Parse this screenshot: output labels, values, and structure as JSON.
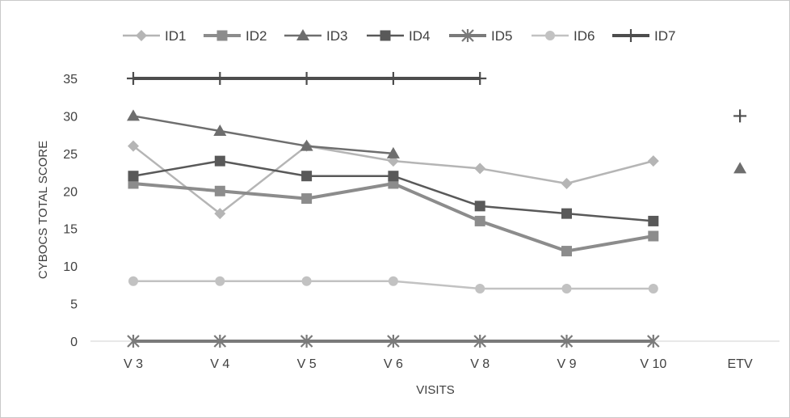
{
  "chart_data": {
    "type": "line",
    "title": "",
    "xlabel": "VISITS",
    "ylabel": "CYBOCS TOTAL SCORE",
    "categories": [
      "V 3",
      "V 4",
      "V 5",
      "V 6",
      "V 8",
      "V 9",
      "V 10",
      "ETV"
    ],
    "yticks": [
      "0",
      "5",
      "10",
      "15",
      "20",
      "25",
      "30",
      "35"
    ],
    "ylim": [
      0,
      35
    ],
    "grid": false,
    "legend_position": "top",
    "series": [
      {
        "name": "ID1",
        "marker": "diamond",
        "color": "#b5b5b5",
        "width": 2.5,
        "values": [
          26,
          17,
          26,
          24,
          23,
          21,
          24,
          null
        ]
      },
      {
        "name": "ID2",
        "marker": "square",
        "color": "#8c8c8c",
        "width": 4,
        "values": [
          21,
          20,
          19,
          21,
          16,
          12,
          14,
          null
        ]
      },
      {
        "name": "ID3",
        "marker": "triangle",
        "color": "#6e6e6e",
        "width": 2.5,
        "values": [
          30,
          28,
          26,
          25,
          null,
          null,
          null,
          23
        ]
      },
      {
        "name": "ID4",
        "marker": "square",
        "color": "#595959",
        "width": 2.5,
        "values": [
          22,
          24,
          22,
          22,
          18,
          17,
          16,
          null
        ]
      },
      {
        "name": "ID5",
        "marker": "asterisk",
        "color": "#7a7a7a",
        "width": 4,
        "values": [
          0,
          0,
          0,
          0,
          0,
          0,
          0,
          null
        ]
      },
      {
        "name": "ID6",
        "marker": "circle",
        "color": "#c2c2c2",
        "width": 2.5,
        "values": [
          8,
          8,
          8,
          8,
          7,
          7,
          7,
          null
        ]
      },
      {
        "name": "ID7",
        "marker": "plus",
        "color": "#4d4d4d",
        "width": 4,
        "values": [
          35,
          35,
          35,
          35,
          35,
          null,
          null,
          30
        ]
      }
    ]
  }
}
